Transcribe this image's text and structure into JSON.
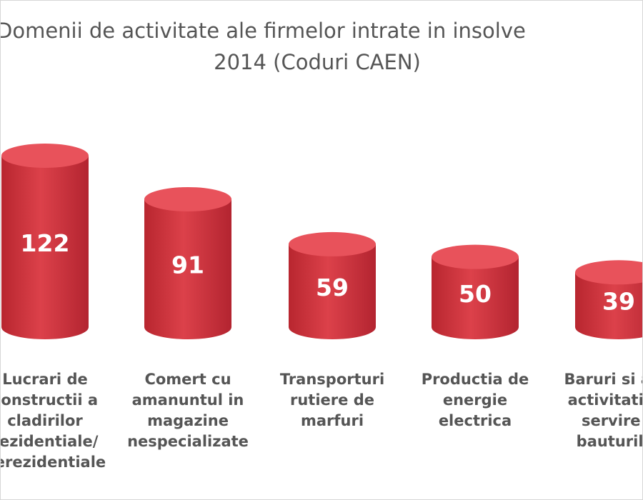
{
  "chart_data": {
    "type": "bar",
    "title_lines": [
      "Domenii de activitate ale firmelor intrate in insolve",
      "2014 (Coduri CAEN)"
    ],
    "categories": [
      "Lucrari de\nconstructii a\ncladirilor\nrezidentiale/\nnerezidentiale",
      "Comert cu\namanuntul in\nmagazine\nnespecializate",
      "Transporturi\nrutiere de\nmarfuri",
      "Productia de\nenergie\nelectrica",
      "Baruri si alte\nactivitati de\nservire a\nbauturilor"
    ],
    "values": [
      122,
      91,
      59,
      50,
      39
    ],
    "data_labels": [
      "122",
      "91",
      "59",
      "50",
      "39"
    ],
    "ylim": [
      0,
      140
    ],
    "grid": false,
    "legend": "none",
    "bar_style": "cylinder",
    "colors": {
      "bar": "#d9404a",
      "bar_top": "#e8525b",
      "bar_shade": "#a91f2b",
      "data_label": "#ffffff",
      "text": "#555555"
    }
  }
}
